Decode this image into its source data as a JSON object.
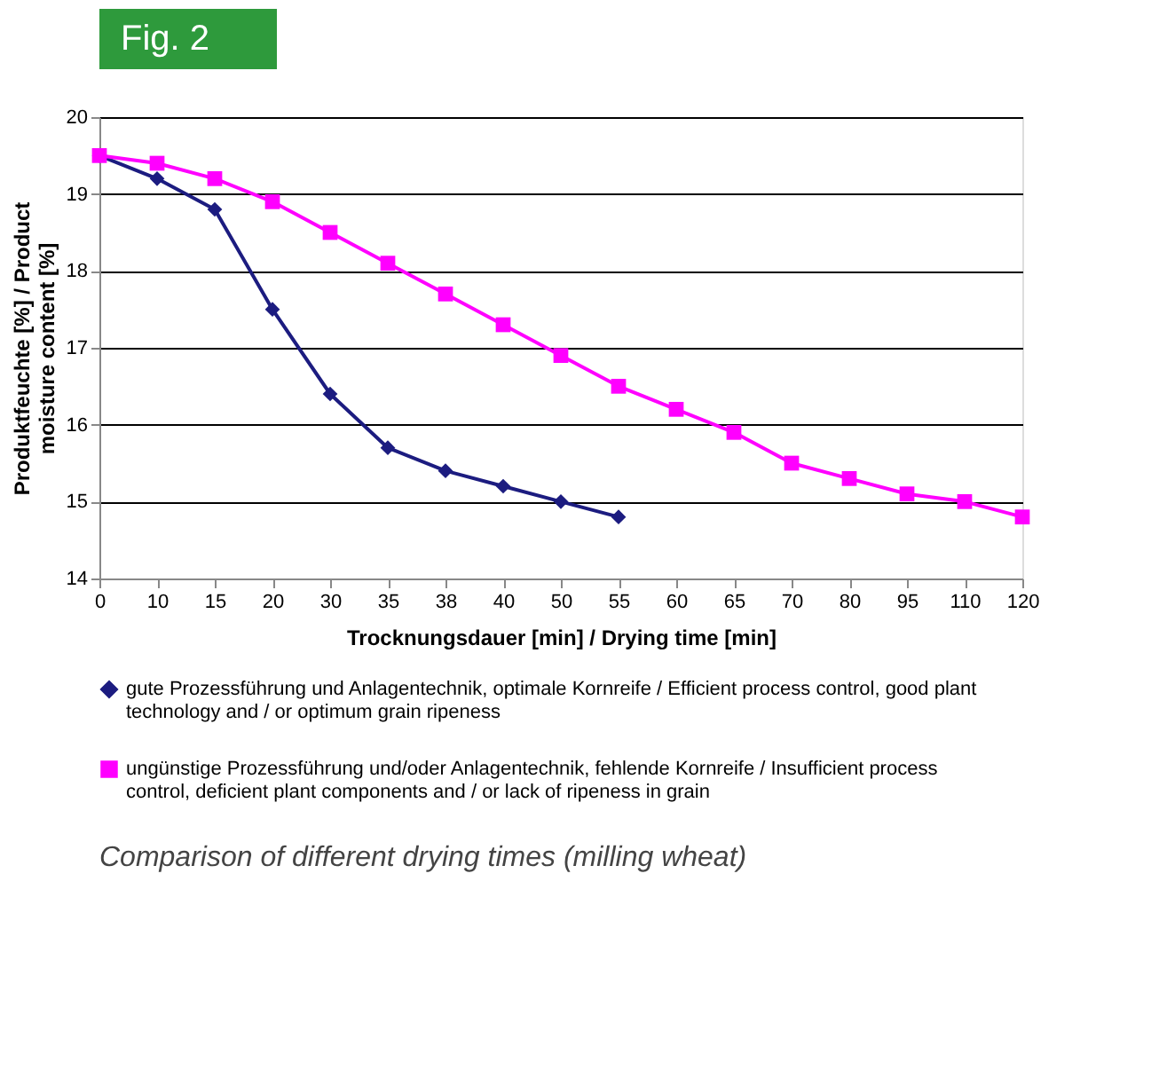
{
  "chart_data": {
    "type": "line",
    "title": "Fig. 2",
    "xlabel": "Trocknungsdauer [min] / Drying time [min]",
    "ylabel": "Produktfeuchte [%] / Product moisture content [%]",
    "categories": [
      "0",
      "10",
      "15",
      "20",
      "30",
      "35",
      "38",
      "40",
      "50",
      "55",
      "60",
      "65",
      "70",
      "80",
      "95",
      "110",
      "120"
    ],
    "series": [
      {
        "name": "gute Prozessführung und Anlagentechnik, optimale Kornreife / Efficient process control, good plant technology and / or optimum grain ripeness",
        "color": "#1c1c80",
        "marker": "diamond",
        "values": [
          19.5,
          19.2,
          18.8,
          17.5,
          16.4,
          15.7,
          15.4,
          15.2,
          15.0,
          14.8,
          null,
          null,
          null,
          null,
          null,
          null,
          null
        ]
      },
      {
        "name": "ungünstige Prozessführung und/oder Anlagentechnik, fehlende Kornreife / Insufficient process control, deficient plant components and / or lack of ripeness in grain",
        "color": "#ff00ff",
        "marker": "square",
        "values": [
          19.5,
          19.4,
          19.2,
          18.9,
          18.5,
          18.1,
          17.7,
          17.3,
          16.9,
          16.5,
          16.2,
          15.9,
          15.5,
          15.3,
          15.1,
          15.0,
          14.8
        ]
      }
    ],
    "ylim": [
      14,
      20
    ],
    "yticks": [
      14,
      15,
      16,
      17,
      18,
      19,
      20
    ],
    "grid": "y",
    "legend": "bottom",
    "line_style": "solid",
    "annotations": [
      "Comparison of different drying times (milling wheat)"
    ]
  }
}
